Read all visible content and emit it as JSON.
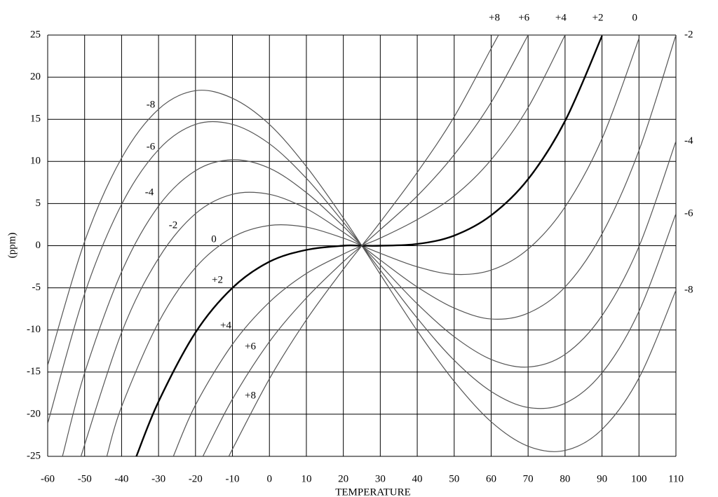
{
  "chart_data": {
    "type": "line",
    "ylabel": "(ppm)",
    "xlabel": "TEMPERATURE",
    "xlim": [
      -60,
      110
    ],
    "ylim": [
      -25,
      25
    ],
    "xticks": [
      -60,
      -50,
      -40,
      -30,
      -20,
      -10,
      0,
      10,
      20,
      30,
      40,
      50,
      60,
      70,
      80,
      90,
      100,
      110
    ],
    "yticks": [
      -25,
      -20,
      -15,
      -10,
      -5,
      0,
      5,
      10,
      15,
      20,
      25
    ],
    "grid": true,
    "series": [
      {
        "name": "-8",
        "color": "#555555",
        "linewidth": 1.2,
        "x": [
          -60,
          -50,
          -40,
          -30,
          -20,
          -10,
          0,
          10,
          20,
          25,
          30,
          40,
          50,
          60,
          70,
          80,
          90,
          100,
          110
        ],
        "values": [
          -14.2,
          0.5,
          10.4,
          16.2,
          18.4,
          17.5,
          14.4,
          9.4,
          3.3,
          0,
          -3.4,
          -10.1,
          -16.1,
          -20.9,
          -23.8,
          -24.3,
          -21.8,
          -15.7,
          -5.3
        ]
      },
      {
        "name": "-6",
        "color": "#555555",
        "linewidth": 1.2,
        "x": [
          -60,
          -50,
          -40,
          -30,
          -20,
          -10,
          0,
          10,
          20,
          25,
          30,
          40,
          50,
          60,
          70,
          80,
          90,
          100,
          110
        ],
        "values": [
          -21.1,
          -5.7,
          4.9,
          11.4,
          14.4,
          14.4,
          12.1,
          8.0,
          2.8,
          0,
          -2.9,
          -8.6,
          -13.6,
          -17.3,
          -19.2,
          -18.7,
          -15.1,
          -7.8,
          3.8
        ]
      },
      {
        "name": "-4",
        "color": "#555555",
        "linewidth": 1.2,
        "x": [
          -56,
          -50,
          -40,
          -30,
          -20,
          -10,
          0,
          10,
          20,
          25,
          30,
          40,
          50,
          60,
          70,
          80,
          90,
          100,
          110
        ],
        "values": [
          -25,
          -15.1,
          -3.1,
          4.7,
          8.9,
          10.2,
          9.2,
          6.3,
          2.3,
          0,
          -2.3,
          -6.9,
          -10.8,
          -13.5,
          -14.4,
          -12.9,
          -8.3,
          -0.1,
          12.4
        ]
      },
      {
        "name": "-2",
        "color": "#555555",
        "linewidth": 1.2,
        "x": [
          -51,
          -40,
          -30,
          -20,
          -10,
          0,
          10,
          20,
          25,
          30,
          40,
          50,
          60,
          70,
          80,
          90,
          100,
          110
        ],
        "values": [
          -25,
          -10.3,
          -1.5,
          3.8,
          6.1,
          6.1,
          4.4,
          1.6,
          0,
          -1.7,
          -4.9,
          -7.4,
          -8.7,
          -8.0,
          -4.9,
          1.4,
          11.3,
          25
        ]
      },
      {
        "name": "0",
        "color": "#555555",
        "linewidth": 1.2,
        "x": [
          -44,
          -40,
          -30,
          -20,
          -10,
          0,
          10,
          20,
          25,
          30,
          40,
          50,
          60,
          70,
          80,
          90,
          100
        ],
        "values": [
          -25,
          -19.1,
          -9.1,
          -2.6,
          1.0,
          2.4,
          2.2,
          0.9,
          0,
          -0.9,
          -2.5,
          -3.4,
          -2.9,
          -0.4,
          4.6,
          12.7,
          24.6
        ]
      },
      {
        "name": "+2",
        "color": "#000000",
        "linewidth": 2.4,
        "x": [
          -36,
          -30,
          -20,
          -10,
          0,
          10,
          20,
          25,
          30,
          40,
          50,
          60,
          70,
          80,
          90
        ],
        "values": [
          -25,
          -18.5,
          -10.3,
          -5.0,
          -1.9,
          -0.5,
          0,
          0,
          0,
          0.2,
          1.2,
          3.6,
          7.9,
          14.8,
          24.9
        ]
      },
      {
        "name": "+4",
        "color": "#555555",
        "linewidth": 1.2,
        "x": [
          -26,
          -20,
          -10,
          0,
          10,
          20,
          25,
          30,
          40,
          50,
          60,
          70,
          80
        ],
        "values": [
          -25,
          -18.9,
          -11.7,
          -6.7,
          -3.3,
          -1.0,
          0,
          0.9,
          3.1,
          5.9,
          10.2,
          16.4,
          25
        ]
      },
      {
        "name": "+6",
        "color": "#555555",
        "linewidth": 1.2,
        "x": [
          -18,
          -10,
          0,
          10,
          20,
          25,
          30,
          40,
          50,
          60,
          70
        ],
        "values": [
          -25,
          -18.2,
          -11.4,
          -6.2,
          -1.9,
          0,
          1.9,
          5.9,
          10.8,
          17.0,
          25
        ]
      },
      {
        "name": "+8",
        "color": "#555555",
        "linewidth": 1.2,
        "x": [
          -11,
          0,
          10,
          20,
          25,
          30,
          40,
          50,
          60,
          62
        ],
        "values": [
          -25,
          -15.8,
          -8.8,
          -2.8,
          0,
          2.8,
          8.7,
          15.3,
          23.4,
          25
        ]
      }
    ]
  }
}
